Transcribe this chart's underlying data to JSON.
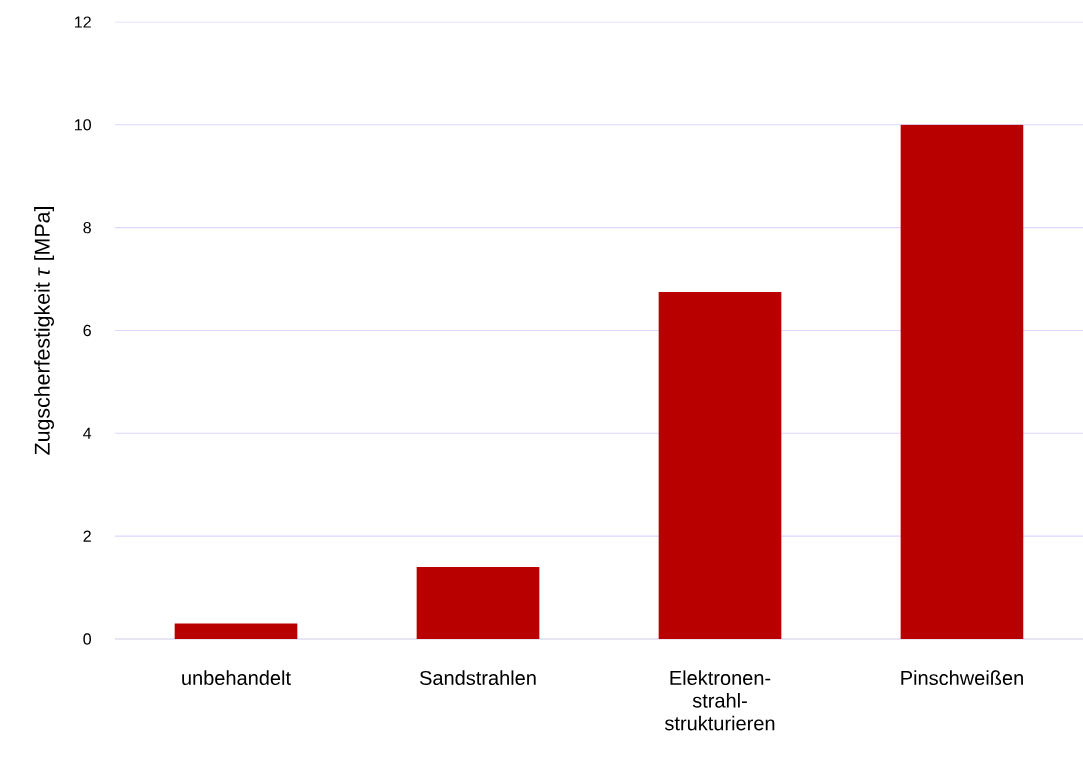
{
  "chart_data": {
    "type": "bar",
    "ylabel": "Zugscherfestigkeit *τ* [MPa]",
    "categories": [
      "unbehandelt",
      "Sandstrahlen",
      "Elektronen-strahl-strukturieren",
      "Pinschweißen"
    ],
    "values": [
      0.3,
      1.4,
      6.75,
      10.0
    ],
    "color": "#b80000",
    "ylim": [
      0,
      12
    ],
    "yticks": [
      0,
      2,
      4,
      6,
      8,
      10,
      12
    ],
    "grid": "y"
  }
}
